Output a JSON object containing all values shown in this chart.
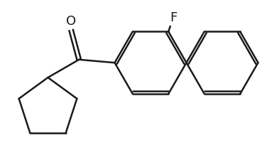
{
  "background_color": "#ffffff",
  "line_color": "#1a1a1a",
  "line_width": 1.8,
  "font_size": 13,
  "label_F": "F",
  "label_O": "O",
  "figsize": [
    3.9,
    2.26
  ],
  "dpi": 100
}
